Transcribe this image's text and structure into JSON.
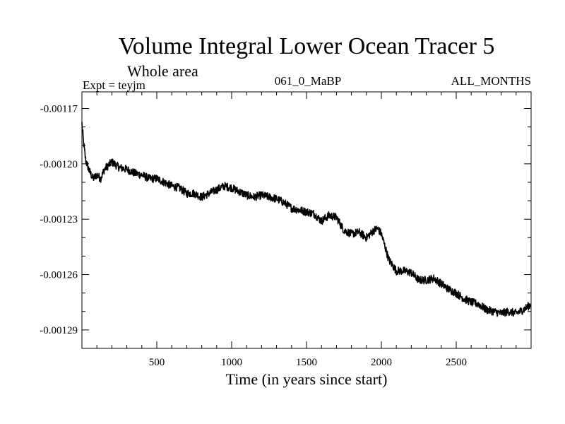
{
  "chart_data": {
    "type": "line",
    "title": "Volume Integral Lower Ocean Tracer 5",
    "subtitle": "Whole area",
    "experiment_label": "Expt = teyjm",
    "run_label": "061_0_MaBP",
    "months_label": "ALL_MONTHS",
    "xlabel": "Time (in years since start)",
    "ylabel": "",
    "xlim": [
      0,
      3000
    ],
    "ylim": [
      -0.0013,
      -0.001161
    ],
    "x_ticks": [
      500,
      1000,
      1500,
      2000,
      2500
    ],
    "x_tick_labels": [
      "500",
      "1000",
      "1500",
      "2000",
      "2500"
    ],
    "y_ticks": [
      -0.00117,
      -0.0012,
      -0.00123,
      -0.00126,
      -0.00129
    ],
    "y_tick_labels": [
      "-0.00117",
      "-0.00120",
      "-0.00123",
      "-0.00126",
      "-0.00129"
    ],
    "grid": false,
    "series": [
      {
        "name": "Tracer 5",
        "color": "#000000",
        "x": [
          0,
          10,
          25,
          50,
          75,
          100,
          125,
          150,
          200,
          250,
          300,
          350,
          400,
          450,
          500,
          550,
          600,
          650,
          700,
          750,
          800,
          850,
          900,
          950,
          1000,
          1050,
          1100,
          1150,
          1200,
          1250,
          1300,
          1350,
          1400,
          1450,
          1500,
          1550,
          1575,
          1600,
          1650,
          1700,
          1750,
          1800,
          1850,
          1900,
          1950,
          1975,
          2000,
          2050,
          2100,
          2150,
          2200,
          2250,
          2300,
          2350,
          2400,
          2450,
          2500,
          2550,
          2600,
          2650,
          2700,
          2750,
          2800,
          2850,
          2900,
          2950,
          3000
        ],
        "values": [
          -0.001178,
          -0.001188,
          -0.001198,
          -0.001204,
          -0.001208,
          -0.001206,
          -0.001208,
          -0.001203,
          -0.001199,
          -0.001202,
          -0.001203,
          -0.001205,
          -0.001206,
          -0.001208,
          -0.001208,
          -0.00121,
          -0.001212,
          -0.001213,
          -0.001216,
          -0.001216,
          -0.001218,
          -0.001216,
          -0.001214,
          -0.001212,
          -0.001213,
          -0.001215,
          -0.001217,
          -0.001218,
          -0.001217,
          -0.001218,
          -0.001219,
          -0.001221,
          -0.001224,
          -0.001225,
          -0.001226,
          -0.001227,
          -0.001229,
          -0.001231,
          -0.001228,
          -0.001229,
          -0.001236,
          -0.001238,
          -0.001237,
          -0.00124,
          -0.001236,
          -0.001235,
          -0.001238,
          -0.001252,
          -0.001258,
          -0.001258,
          -0.001259,
          -0.001263,
          -0.001263,
          -0.001262,
          -0.001265,
          -0.001268,
          -0.00127,
          -0.001273,
          -0.001275,
          -0.001276,
          -0.001279,
          -0.00128,
          -0.001281,
          -0.00128,
          -0.001281,
          -0.001279,
          -0.001276
        ]
      }
    ]
  }
}
